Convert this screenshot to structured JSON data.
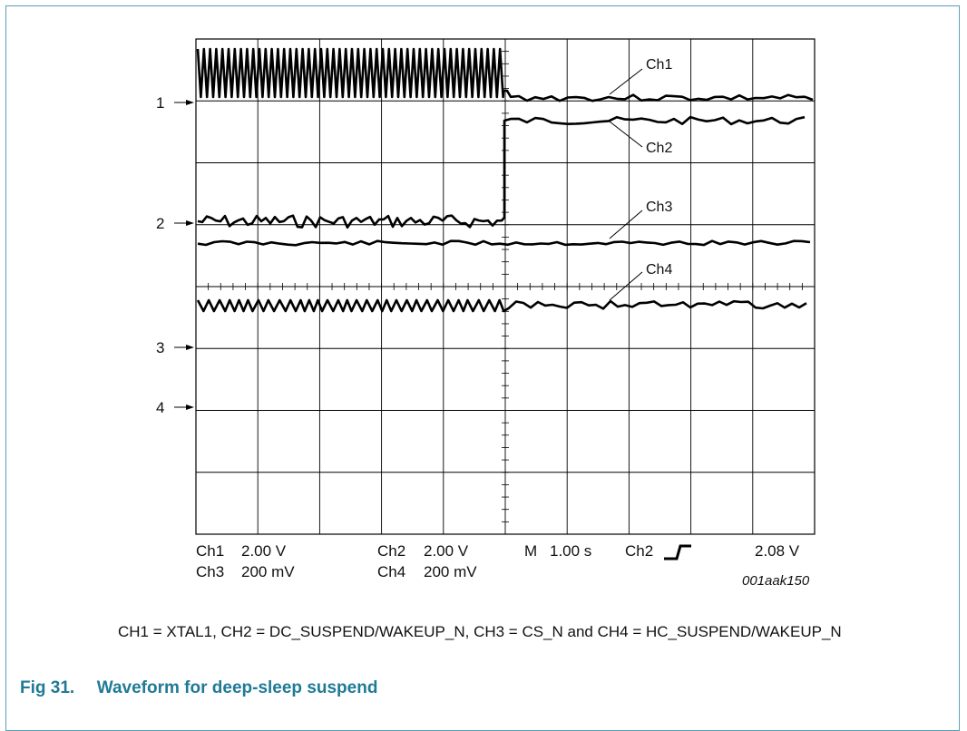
{
  "figure": {
    "channel_markers": [
      "1",
      "2",
      "3",
      "4"
    ],
    "trace_labels": [
      "Ch1",
      "Ch2",
      "Ch3",
      "Ch4"
    ],
    "settings_left": {
      "row1": [
        "Ch1",
        "2.00 V",
        "Ch2",
        "2.00 V"
      ],
      "row2": [
        "Ch3",
        "200 mV",
        "Ch4",
        "200 mV"
      ]
    },
    "settings_right": {
      "mode": "M",
      "timebase": "1.00 s",
      "trigger_channel": "Ch2",
      "trigger_icon": "rising-edge-icon",
      "trigger_level": "2.08 V"
    },
    "figure_id": "001aak150"
  },
  "legend": "CH1 = XTAL1, CH2 = DC_SUSPEND/WAKEUP_N, CH3 = CS_N and CH4 = HC_SUSPEND/WAKEUP_N",
  "caption": {
    "number": "Fig 31.",
    "title": "Waveform for deep-sleep suspend"
  },
  "colors": {
    "border": "#5aa0b4",
    "caption": "#1f7a96",
    "trace": "#000000"
  }
}
